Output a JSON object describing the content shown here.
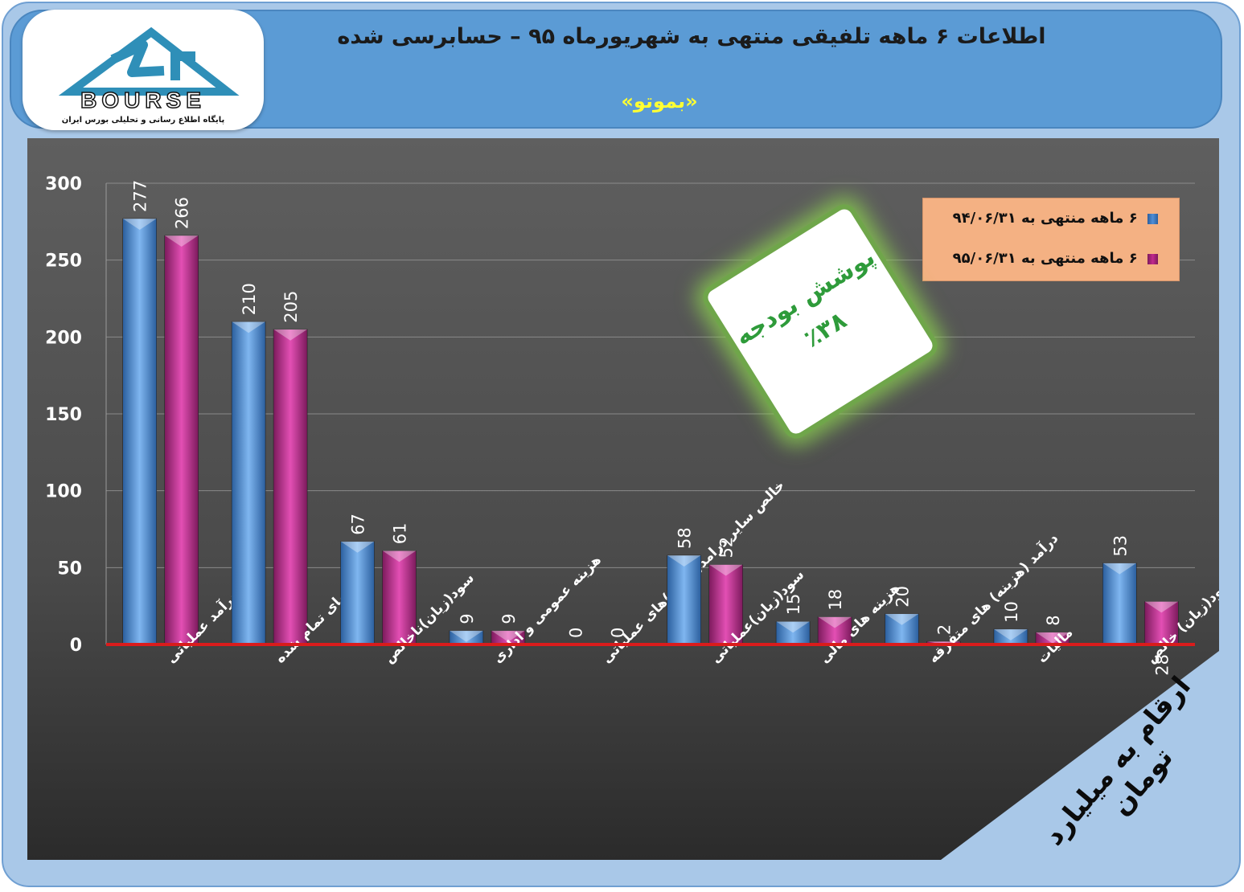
{
  "header": {
    "title": "اطلاعات ۶ ماهه تلفیقی منتهی به شهریورماه ۹۵ – حسابرسی شده",
    "subtitle": "«بموتو»"
  },
  "logo": {
    "brand": "BOURSE",
    "tagline": "پایگاه اطلاع رسانی و تحلیلی بورس ایران",
    "icon": "bourse-24-logo-icon"
  },
  "badge": {
    "line1": "پوشش بودجه",
    "line2": "٪۳۸"
  },
  "corner_note": "ارقام به میلیارد تومان",
  "colors": {
    "series1": "#4f8ed6",
    "series2": "#c22a8e",
    "baseline": "#d91c1c",
    "badge_border": "#6fa64a",
    "badge_text": "#2e9b3a"
  },
  "chart_data": {
    "type": "bar",
    "title": "",
    "xlabel": "",
    "ylabel": "",
    "ylim": [
      0,
      300
    ],
    "yticks": [
      0,
      50,
      100,
      150,
      200,
      250,
      300
    ],
    "grid": true,
    "legend_position": "top-right",
    "categories": [
      "درآمد عملیاتی",
      "بهای تمام شده",
      "سود(زیان)ناخالص",
      "هزینه عمومی و اداری",
      "خالص سایر درامد(هزینه)های عملیاتی",
      "سود(زیان)عملیاتی",
      "هزینه های مالی",
      "درآمد (هزینه) های متفرقه",
      "مالیات",
      "سود(زیان) خالص"
    ],
    "series": [
      {
        "name": "۶ ماهه منتهی به ۹۴/۰۶/۳۱",
        "values": [
          277,
          210,
          67,
          9,
          0,
          58,
          15,
          20,
          10,
          53
        ]
      },
      {
        "name": "۶ ماهه منتهی به ۹۵/۰۶/۳۱",
        "values": [
          266,
          205,
          61,
          9,
          0,
          52,
          18,
          2,
          8,
          28
        ]
      }
    ]
  }
}
